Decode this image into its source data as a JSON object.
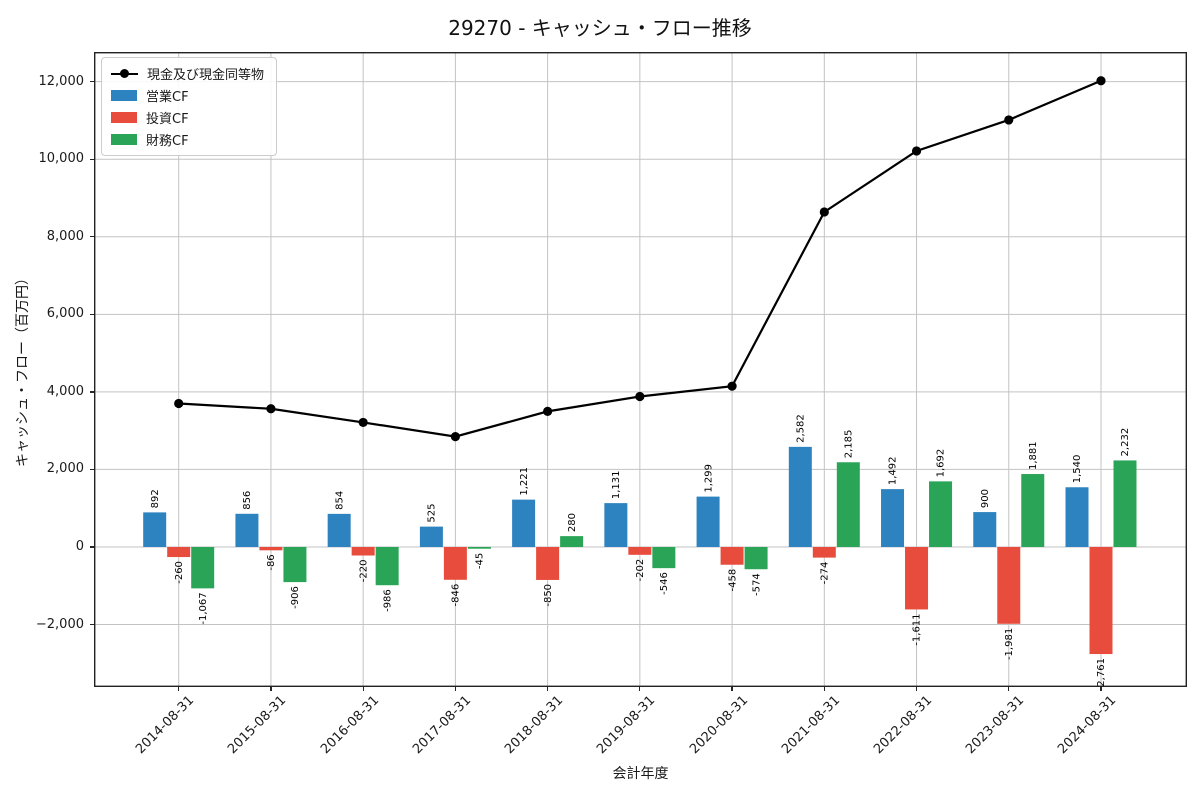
{
  "chart_data": {
    "type": "bar+line",
    "title": "29270 - キャッシュ・フロー推移",
    "xlabel": "会計年度",
    "ylabel": "キャッシュ・フロー（百万円）",
    "categories": [
      "2014-08-31",
      "2015-08-31",
      "2016-08-31",
      "2017-08-31",
      "2018-08-31",
      "2019-08-31",
      "2020-08-31",
      "2021-08-31",
      "2022-08-31",
      "2023-08-31",
      "2024-08-31"
    ],
    "series": [
      {
        "name": "現金及び現金同等物",
        "kind": "line",
        "color": "#000000",
        "estimated_from_plot": true,
        "values": [
          3700,
          3564,
          3212,
          2846,
          3497,
          3880,
          4147,
          8640,
          10213,
          11013,
          12024
        ]
      },
      {
        "name": "営業CF",
        "kind": "bar",
        "color": "#2d82c0",
        "values": [
          892,
          856,
          854,
          525,
          1221,
          1131,
          1299,
          2582,
          1492,
          900,
          1540
        ]
      },
      {
        "name": "投資CF",
        "kind": "bar",
        "color": "#e74c3c",
        "values": [
          -260,
          -86,
          -220,
          -846,
          -850,
          -202,
          -458,
          -274,
          -1611,
          -1981,
          -2761
        ]
      },
      {
        "name": "財務CF",
        "kind": "bar",
        "color": "#2aa558",
        "values": [
          -1067,
          -906,
          -986,
          -45,
          280,
          -546,
          -574,
          2185,
          1692,
          1881,
          2232
        ]
      }
    ],
    "bar_value_labels": true,
    "bar_label_rotation": 90,
    "yticks": [
      -2000,
      0,
      2000,
      4000,
      6000,
      8000,
      10000,
      12000
    ],
    "ylim": [
      -3611,
      12765
    ],
    "grid": true,
    "legend_position": "upper left",
    "colors": {
      "grid": "#c3c3c3",
      "spine": "#222222",
      "text": "#1a1a1a"
    }
  }
}
